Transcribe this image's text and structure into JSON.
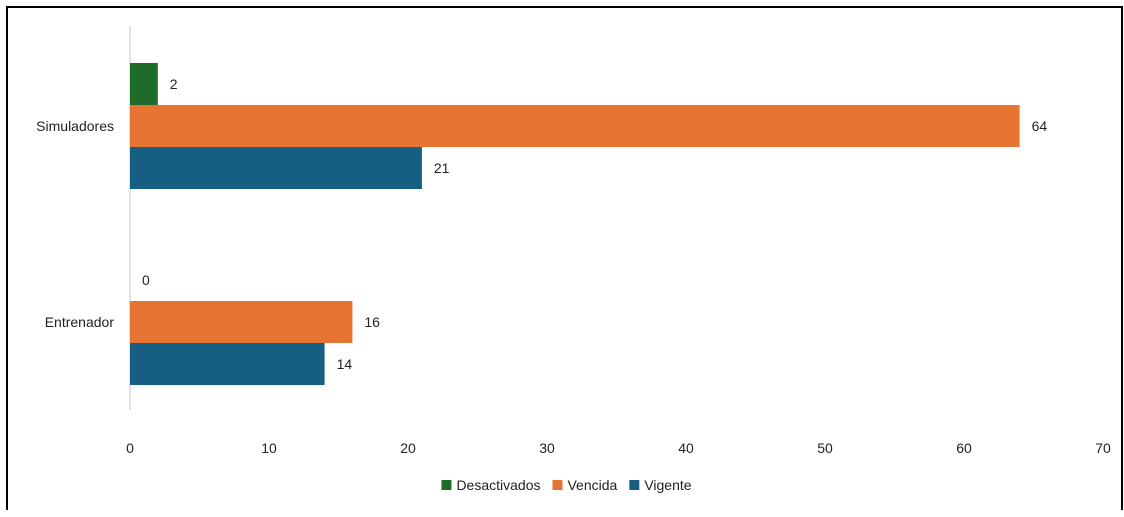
{
  "chart_data": {
    "type": "bar",
    "orientation": "horizontal",
    "categories": [
      "Simuladores",
      "Entrenador"
    ],
    "series": [
      {
        "name": "Desactivados",
        "color": "#1e6b2a",
        "values": [
          2,
          0
        ]
      },
      {
        "name": "Vencida",
        "color": "#e87434",
        "values": [
          64,
          16
        ]
      },
      {
        "name": "Vigente",
        "color": "#165f82",
        "values": [
          21,
          14
        ]
      }
    ],
    "xlim": [
      0,
      70
    ],
    "xticks": [
      0,
      10,
      20,
      30,
      40,
      50,
      60,
      70
    ],
    "xtick_labels": [
      "0",
      "10",
      "20",
      "30",
      "40",
      "50",
      "60",
      "70"
    ],
    "data_labels": true,
    "grid": false,
    "legend_position": "bottom"
  }
}
